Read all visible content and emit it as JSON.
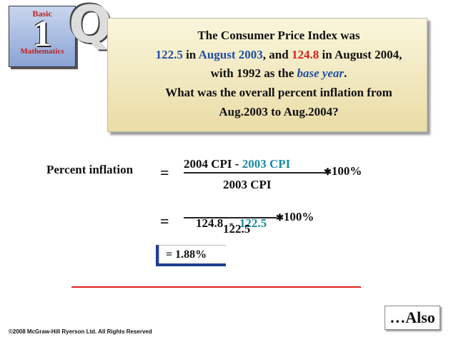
{
  "logo": {
    "top": "Basic",
    "number": "1",
    "bottom": "Mathematics",
    "badge": "Q"
  },
  "question": {
    "line1": "The Consumer Price Index was",
    "cpi_2003": "122.5",
    "in_a": " in ",
    "date_2003": "August 2003",
    "and": ", and ",
    "cpi_2004": "124.8",
    "in_b": " in August 2004,",
    "with": "with 1992 as the ",
    "base_year": "base year",
    "period": ".",
    "line4": "What was the overall percent inflation from",
    "line5": "Aug.2003 to Aug.2004?"
  },
  "formula": {
    "label": "Percent inflation",
    "eq": "=",
    "num_a": "2004 CPI - ",
    "num_b": "2003 CPI",
    "den": "2003 CPI",
    "times": "✱",
    "pct": "100%"
  },
  "step2": {
    "eq": "=",
    "num_a": "124.8  -  ",
    "num_b": "122.5",
    "den": "122.5",
    "times": "✱",
    "pct": "100%"
  },
  "result": "= 1.88%",
  "also": "…Also",
  "copyright": "©2008 McGraw-Hill Ryerson Ltd.  All Rights Reserved"
}
